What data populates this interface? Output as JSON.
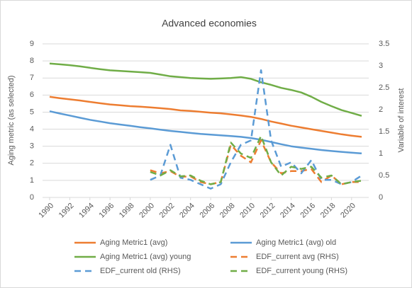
{
  "chart_data": {
    "type": "line",
    "title": "Advanced economies",
    "y_label": "Aging metric (as selected)",
    "y2_label": "Variable of interest",
    "x": [
      1990,
      1991,
      1992,
      1993,
      1994,
      1995,
      1996,
      1997,
      1998,
      1999,
      2000,
      2001,
      2002,
      2003,
      2004,
      2005,
      2006,
      2007,
      2008,
      2009,
      2010,
      2011,
      2012,
      2013,
      2014,
      2015,
      2016,
      2017,
      2018,
      2019,
      2020,
      2021
    ],
    "xlim": [
      1990,
      2021
    ],
    "xticks": [
      1990,
      1992,
      1994,
      1996,
      1998,
      2000,
      2002,
      2004,
      2006,
      2008,
      2010,
      2012,
      2014,
      2016,
      2018,
      2020
    ],
    "ylim": [
      0,
      9
    ],
    "yticks": [
      0,
      1,
      2,
      3,
      4,
      5,
      6,
      7,
      8,
      9
    ],
    "y2lim": [
      0,
      3.5
    ],
    "y2ticks": [
      0,
      0.5,
      1,
      1.5,
      2,
      2.5,
      3,
      3.5
    ],
    "grid": true,
    "legend": "bottom",
    "series": [
      {
        "name": "Aging Metric1 (avg)",
        "color": "#ED7D31",
        "dash": false,
        "values": [
          5.9,
          5.82,
          5.75,
          5.68,
          5.6,
          5.52,
          5.45,
          5.4,
          5.35,
          5.32,
          5.28,
          5.23,
          5.18,
          5.1,
          5.07,
          5.02,
          4.97,
          4.93,
          4.87,
          4.8,
          4.72,
          4.6,
          4.45,
          4.33,
          4.2,
          4.1,
          4.0,
          3.9,
          3.8,
          3.7,
          3.62,
          3.55
        ]
      },
      {
        "name": "Aging Metric1 (avg) old",
        "color": "#5B9BD5",
        "dash": false,
        "values": [
          5.05,
          4.92,
          4.8,
          4.67,
          4.55,
          4.45,
          4.35,
          4.27,
          4.2,
          4.12,
          4.05,
          3.97,
          3.9,
          3.84,
          3.78,
          3.72,
          3.68,
          3.64,
          3.6,
          3.55,
          3.48,
          3.38,
          3.25,
          3.12,
          3.0,
          2.92,
          2.85,
          2.78,
          2.72,
          2.67,
          2.62,
          2.58
        ]
      },
      {
        "name": "Aging Metric1 (avg) young",
        "color": "#70AD47",
        "dash": false,
        "values": [
          7.85,
          7.8,
          7.75,
          7.68,
          7.6,
          7.52,
          7.45,
          7.41,
          7.38,
          7.34,
          7.3,
          7.2,
          7.1,
          7.05,
          7.0,
          6.97,
          6.95,
          6.97,
          7.0,
          7.05,
          6.95,
          6.75,
          6.6,
          6.42,
          6.3,
          6.15,
          5.9,
          5.6,
          5.35,
          5.12,
          4.95,
          4.78
        ]
      },
      {
        "name": "EDF_current avg (RHS)",
        "color": "#ED7D31",
        "dash": true,
        "axis": "y2",
        "values": [
          null,
          null,
          null,
          null,
          null,
          null,
          null,
          null,
          null,
          null,
          0.62,
          0.55,
          0.6,
          0.47,
          0.48,
          0.35,
          0.3,
          0.35,
          1.2,
          0.95,
          0.8,
          1.3,
          0.8,
          0.55,
          0.6,
          0.6,
          0.65,
          0.35,
          0.5,
          0.3,
          0.35,
          0.35
        ]
      },
      {
        "name": "EDF_current old (RHS)",
        "color": "#5B9BD5",
        "dash": true,
        "axis": "y2",
        "values": [
          null,
          null,
          null,
          null,
          null,
          null,
          null,
          null,
          null,
          null,
          0.4,
          0.5,
          1.2,
          0.45,
          0.4,
          0.3,
          0.2,
          0.3,
          0.8,
          1.2,
          1.3,
          2.9,
          1.3,
          0.7,
          0.8,
          0.55,
          0.85,
          0.4,
          0.4,
          0.3,
          0.35,
          0.5
        ]
      },
      {
        "name": "EDF_current young (RHS)",
        "color": "#70AD47",
        "dash": true,
        "axis": "y2",
        "values": [
          null,
          null,
          null,
          null,
          null,
          null,
          null,
          null,
          null,
          null,
          0.58,
          0.5,
          0.62,
          0.48,
          0.5,
          0.38,
          0.3,
          0.35,
          1.25,
          1.0,
          0.9,
          1.4,
          0.8,
          0.5,
          0.7,
          0.65,
          0.7,
          0.45,
          0.5,
          0.3,
          0.35,
          0.38
        ]
      }
    ]
  }
}
